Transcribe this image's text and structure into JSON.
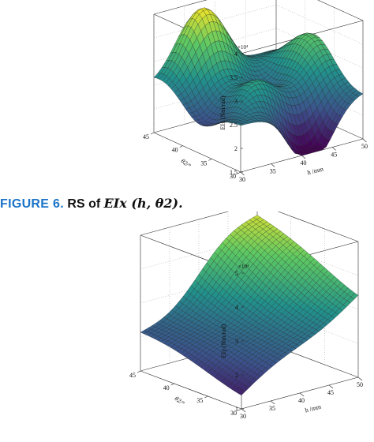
{
  "figures": [
    {
      "label": "FIGURE 6.",
      "caption_text": "RS of ",
      "caption_math": "EIx (h, θ2).",
      "chart_data": {
        "type": "surface",
        "xlabel": "h /mm",
        "ylabel": "θ2/°",
        "zlabel": "EIx (Nm/rad)",
        "z_multiplier": "×10⁴",
        "xlim": [
          30,
          50
        ],
        "ylim": [
          30,
          45
        ],
        "zlim": [
          1.5,
          4
        ],
        "x_ticks": [
          "30",
          "35",
          "40",
          "45",
          "50"
        ],
        "y_ticks": [
          "30",
          "35",
          "40",
          "45"
        ],
        "z_ticks": [
          "1.5",
          "2",
          "2.5",
          "3",
          "3.5",
          "4"
        ],
        "colormap": [
          "#440154",
          "#3b528b",
          "#21918c",
          "#5ec962",
          "#fde725"
        ]
      }
    },
    {
      "label": "",
      "caption_text": "",
      "caption_math": "",
      "chart_data": {
        "type": "surface",
        "xlabel": "h /mm",
        "ylabel": "θ2/°",
        "zlabel": "EIy (Nm/rad)",
        "z_multiplier": "×10⁴",
        "xlim": [
          30,
          50
        ],
        "ylim": [
          30,
          45
        ],
        "zlim": [
          1,
          5
        ],
        "x_ticks": [
          "30",
          "35",
          "40",
          "45",
          "50"
        ],
        "y_ticks": [
          "30",
          "35",
          "40",
          "45"
        ],
        "z_ticks": [
          "1",
          "2",
          "3",
          "4",
          "5"
        ],
        "colormap": [
          "#440154",
          "#3b528b",
          "#21918c",
          "#5ec962",
          "#fde725"
        ]
      }
    }
  ]
}
